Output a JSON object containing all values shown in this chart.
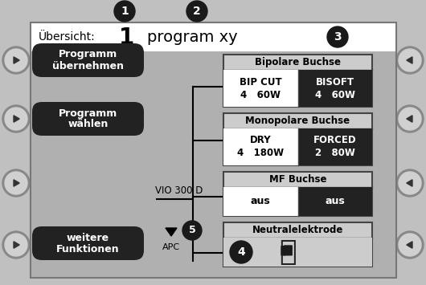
{
  "bg_outer": "#c0c0c0",
  "bg_inner": "#b0b0b0",
  "bg_white_header": "#ffffff",
  "dark_btn": "#222222",
  "light_gray": "#cccccc",
  "mid_gray": "#aaaaaa",
  "header_text": "Übersicht:",
  "header_num": "1",
  "header_prog": "program xy",
  "btn1_line1": "Programm",
  "btn1_line2": "übernehmen",
  "btn2_line1": "Programm",
  "btn2_line2": "wählen",
  "btn3_line1": "weitere",
  "btn3_line2": "Funktionen",
  "vio_label": "VIO 300 D",
  "apc_label": "APC",
  "box1_title": "Bipolare Buchse",
  "box1_left_name": "BIP CUT",
  "box1_left_val": "4   60W",
  "box1_right_name": "BISOFT",
  "box1_right_val": "4   60W",
  "box2_title": "Monopolare Buchse",
  "box2_left_name": "DRY",
  "box2_left_val": "4   180W",
  "box2_right_name": "FORCED",
  "box2_right_val": "2   80W",
  "box3_title": "MF Buchse",
  "box3_left": "aus",
  "box3_right": "aus",
  "box4_title": "Neutralelektrode",
  "nav_circle_bg": "#d0d0d0",
  "nav_circle_edge": "#888888"
}
